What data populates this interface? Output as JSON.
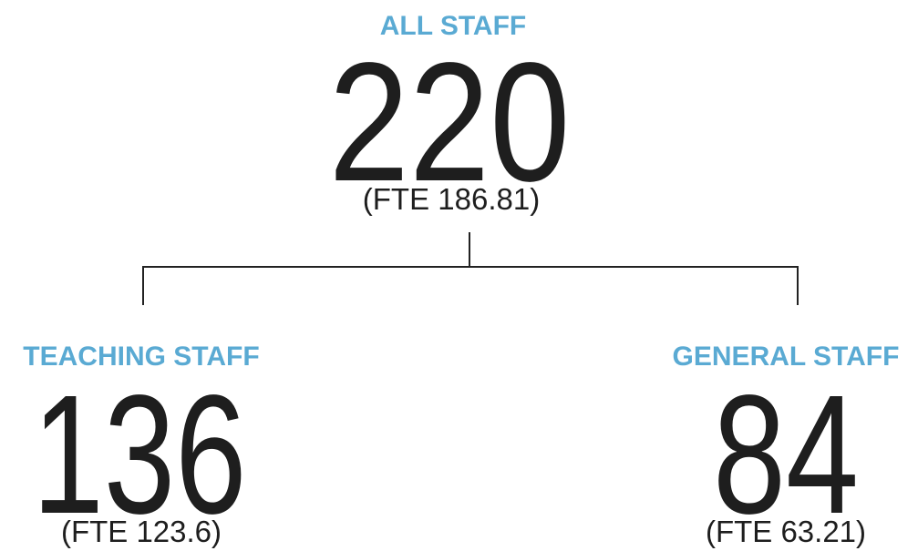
{
  "nodes": [
    {
      "label": "ALL STAFF",
      "value": 220,
      "fte": "(FTE 186.81)"
    },
    {
      "label": "TEACHING STAFF",
      "value": 136,
      "fte": "(FTE 123.6)"
    },
    {
      "label": "GENERAL STAFF",
      "value": 84,
      "fte": "(FTE 63.21)"
    }
  ]
}
